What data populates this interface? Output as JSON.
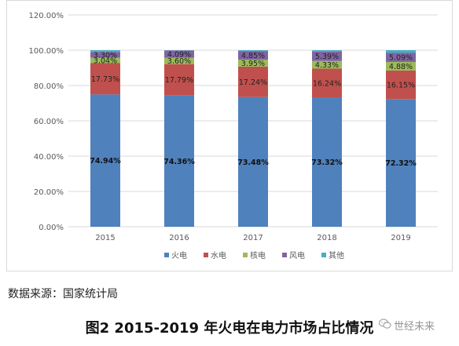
{
  "chart_data": {
    "type": "bar",
    "stacked": true,
    "categories": [
      "2015",
      "2016",
      "2017",
      "2018",
      "2019"
    ],
    "series": [
      {
        "name": "火电",
        "color": "#4f81bd",
        "values": [
          74.94,
          74.36,
          73.48,
          73.32,
          72.32
        ],
        "labels": [
          "74.94%",
          "74.36%",
          "73.48%",
          "73.32%",
          "72.32%"
        ]
      },
      {
        "name": "水电",
        "color": "#c0504d",
        "values": [
          17.73,
          17.79,
          17.24,
          16.24,
          16.15
        ],
        "labels": [
          "17.73%",
          "17.79%",
          "17.24%",
          "16.24%",
          "16.15%"
        ]
      },
      {
        "name": "核电",
        "color": "#9bbb59",
        "values": [
          3.04,
          3.6,
          3.95,
          4.33,
          4.88
        ],
        "labels": [
          "3.04%",
          "3.60%",
          "3.95%",
          "4.33%",
          "4.88%"
        ]
      },
      {
        "name": "风电",
        "color": "#8064a2",
        "values": [
          3.3,
          4.09,
          4.85,
          5.39,
          5.09
        ],
        "labels": [
          "3.30%",
          "4.09%",
          "4.85%",
          "5.39%",
          "5.09%"
        ]
      },
      {
        "name": "其他",
        "color": "#4bacc6",
        "values": [
          0.99,
          0.16,
          0.48,
          0.72,
          1.56
        ],
        "labels": [
          "",
          "",
          "",
          "",
          ""
        ]
      }
    ],
    "yticks": [
      "0.00%",
      "20.00%",
      "40.00%",
      "60.00%",
      "80.00%",
      "100.00%",
      "120.00%"
    ],
    "ylim": [
      0,
      120
    ],
    "grid": true,
    "legend": "bottom"
  },
  "source_note": "数据来源：国家统计局",
  "caption": "图2 2015-2019 年火电在电力市场占比情况",
  "watermark": {
    "text": "世经未来",
    "icon": "wechat-icon"
  }
}
